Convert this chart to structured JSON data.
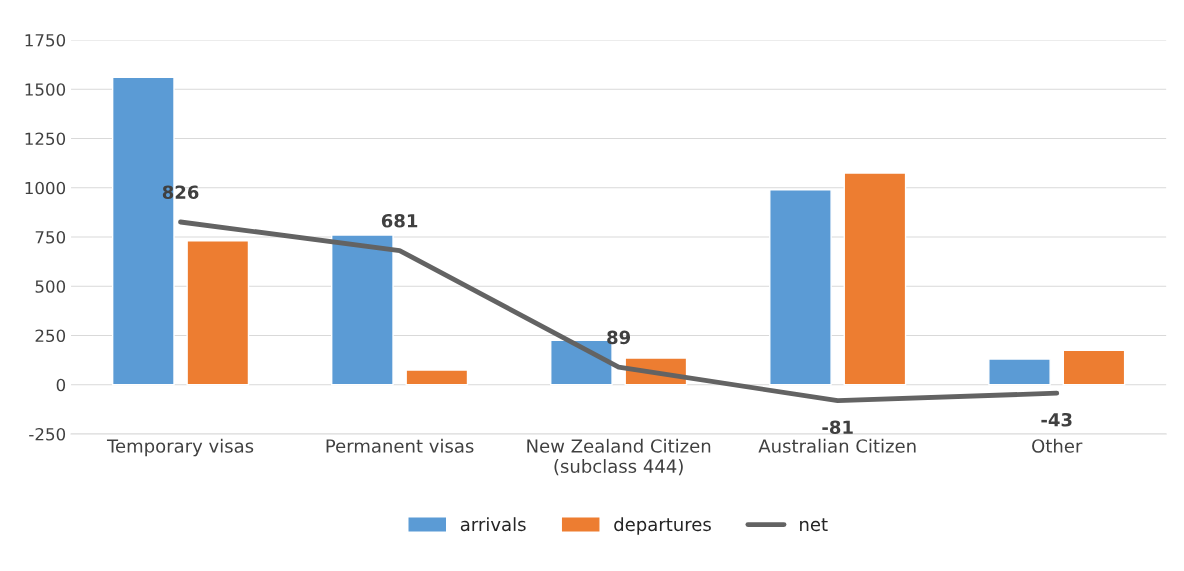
{
  "chart_data": {
    "type": "bar",
    "categories": [
      "Temporary visas",
      "Permanent visas",
      "New Zealand Citizen\n(subclass 444)",
      "Australian Citizen",
      "Other"
    ],
    "series": [
      {
        "name": "arrivals",
        "color": "#5b9bd5",
        "values": [
          1560,
          760,
          225,
          990,
          130
        ]
      },
      {
        "name": "departures",
        "color": "#ed7d31",
        "values": [
          730,
          75,
          135,
          1075,
          175
        ]
      },
      {
        "name": "net",
        "type": "line",
        "color": "#636363",
        "values": [
          826,
          681,
          89,
          -81,
          -43
        ],
        "value_labels": [
          "826",
          "681",
          "89",
          "-81",
          "-43"
        ]
      }
    ],
    "ylim": [
      -250,
      1750
    ],
    "yticks": [
      -250,
      0,
      250,
      500,
      750,
      1000,
      1250,
      1500,
      1750
    ],
    "grid": "y",
    "legend": "bottom"
  }
}
